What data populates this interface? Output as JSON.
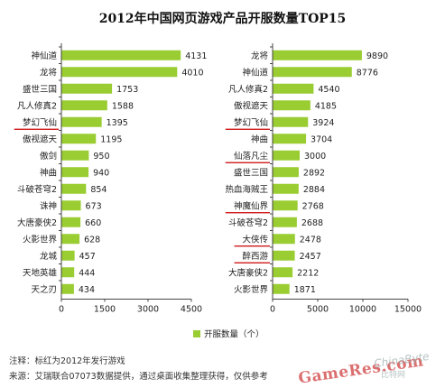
{
  "title": "2012年中国网页游戏产品开服数量TOP15",
  "notes": {
    "line1": "注释：标红为2012年发行游戏",
    "line2": "来源：艾瑞联合07073数据提供，通过桌面收集整理获得，仅供参考"
  },
  "watermark": {
    "main": "GameRes.com",
    "sub": "ChinaByte",
    "sub2": "比特网"
  },
  "colors": {
    "bar": "#9acd32",
    "highlight_underline": "#cc0000",
    "axis": "#444444"
  },
  "chart_data": [
    {
      "type": "bar",
      "orientation": "horizontal",
      "categories": [
        "神仙道",
        "龙将",
        "盛世三国",
        "凡人修真2",
        "梦幻飞仙",
        "傲视遮天",
        "傲剑",
        "神曲",
        "斗破苍穹2",
        "诛神",
        "大唐豪侠2",
        "火影世界",
        "龙城",
        "天地英雄",
        "天之刃"
      ],
      "values": [
        4131,
        4010,
        1753,
        1588,
        1395,
        1195,
        950,
        940,
        854,
        673,
        660,
        628,
        457,
        444,
        434
      ],
      "highlighted": [
        "梦幻飞仙"
      ],
      "xlim": [
        0,
        4500
      ],
      "xticks": [
        "0",
        "1500",
        "3000",
        "4500"
      ],
      "legend": "开服数（个）"
    },
    {
      "type": "bar",
      "orientation": "horizontal",
      "categories": [
        "龙将",
        "神仙道",
        "凡人修真2",
        "傲视遮天",
        "梦幻飞仙",
        "神曲",
        "仙落凡尘",
        "盛世三国",
        "热血海贼王",
        "神魔仙界",
        "斗破苍穹2",
        "大侠传",
        "醉西游",
        "大唐豪侠2",
        "火影世界"
      ],
      "values": [
        9890,
        8776,
        4540,
        4185,
        3924,
        3704,
        3000,
        2892,
        2884,
        2768,
        2688,
        2478,
        2457,
        2212,
        1871
      ],
      "highlighted": [
        "梦幻飞仙",
        "仙落凡尘",
        "神魔仙界",
        "大侠传",
        "醉西游"
      ],
      "xlim": [
        0,
        15000
      ],
      "xticks": [
        "0",
        "5000",
        "10000",
        "15000"
      ]
    }
  ],
  "legend": {
    "label": "开服数量（个）",
    "placement": "bottom-center"
  }
}
